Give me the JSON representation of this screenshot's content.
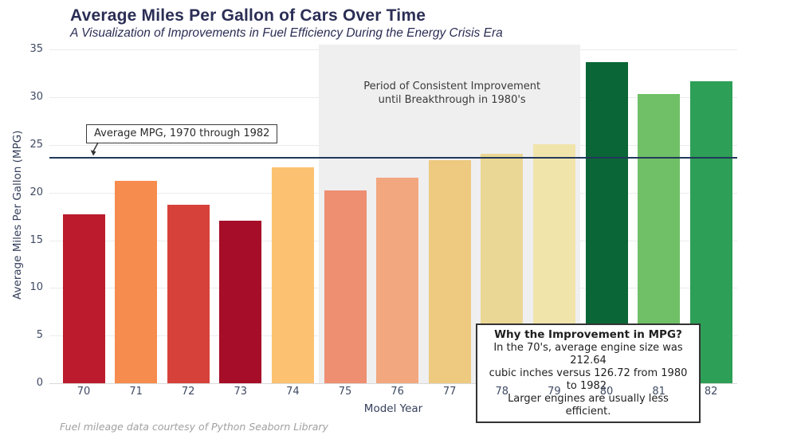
{
  "header": {
    "title": "Average Miles Per Gallon of Cars Over Time",
    "subtitle": "A Visualization of Improvements in Fuel Efficiency During the Energy Crisis Era"
  },
  "chart_data": {
    "type": "bar",
    "title": "Average Miles Per Gallon of Cars Over Time",
    "xlabel": "Model Year",
    "ylabel": "Average Miles Per Gallon (MPG)",
    "categories": [
      "70",
      "71",
      "72",
      "73",
      "74",
      "75",
      "76",
      "77",
      "78",
      "79",
      "80",
      "81",
      "82"
    ],
    "values": [
      17.69,
      21.25,
      18.71,
      17.1,
      22.7,
      20.27,
      21.57,
      23.38,
      24.06,
      25.09,
      33.7,
      30.33,
      31.71
    ],
    "bar_colors": [
      "#bb1b2c",
      "#f68c4d",
      "#d6413a",
      "#a50d28",
      "#fcc271",
      "#ee8f72",
      "#f2a77f",
      "#edca80",
      "#ebd795",
      "#f1e4ab",
      "#0a6636",
      "#6fc066",
      "#2d9f56"
    ],
    "ylim": [
      0,
      35.54
    ],
    "yticks": [
      0,
      5,
      10,
      15,
      20,
      25,
      30,
      35
    ],
    "grid": "horizontal",
    "avg_line": {
      "value": 23.66,
      "color": "#22395b",
      "label": "Average MPG, 1970 through 1982"
    },
    "region": {
      "start_category": "75",
      "end_category": "79",
      "color": "#efeff0",
      "label": "Period of Consistent Improvement\nuntil Breakthrough in 1980's"
    },
    "annotation_box": {
      "title": "Why the Improvement in MPG?",
      "body": "In the 70's, average engine size was 212.64\ncubic inches versus 126.72 from 1980 to 1982.\nLarger engines are usually less efficient."
    },
    "footer": "Fuel mileage data courtesy of Python Seaborn Library"
  }
}
